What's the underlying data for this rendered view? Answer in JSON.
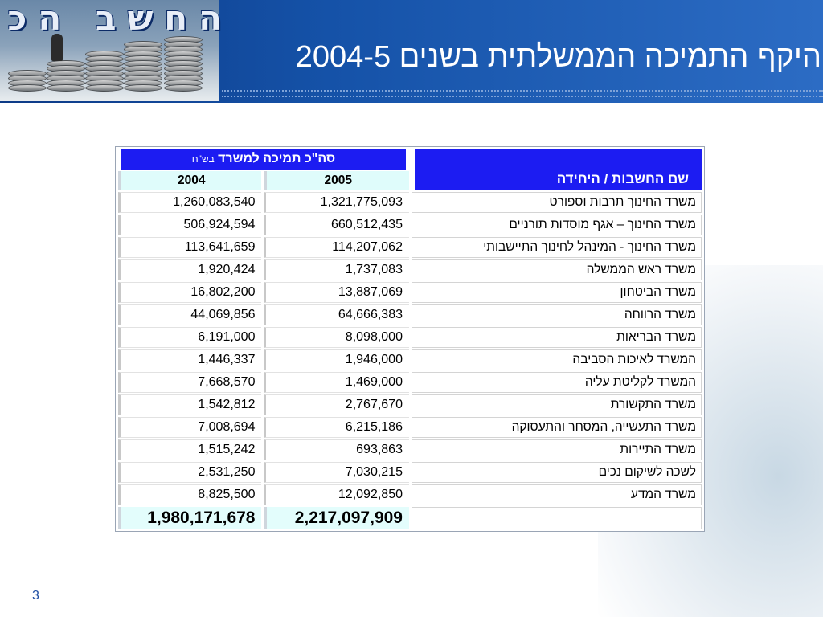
{
  "header": {
    "logo_text": "החשב הכללי",
    "title": "היקף התמיכה הממשלתית בשנים  2004-5"
  },
  "table": {
    "group_header": "סה\"כ תמיכה למשרד",
    "group_header_unit": "בש\"ח",
    "name_header": "שם החשבות / היחידה",
    "years": [
      "2004",
      "2005"
    ],
    "rows": [
      {
        "name": "משרד החינוך תרבות וספורט",
        "v2004": "1,260,083,540",
        "v2005": "1,321,775,093"
      },
      {
        "name": "משרד החינוך – אגף מוסדות תורניים",
        "v2004": "506,924,594",
        "v2005": "660,512,435"
      },
      {
        "name": "משרד החינוך -  המינהל לחינוך התיישבותי",
        "v2004": "113,641,659",
        "v2005": "114,207,062"
      },
      {
        "name": "משרד ראש הממשלה",
        "v2004": "1,920,424",
        "v2005": "1,737,083"
      },
      {
        "name": "משרד הביטחון",
        "v2004": "16,802,200",
        "v2005": "13,887,069"
      },
      {
        "name": "משרד הרווחה",
        "v2004": "44,069,856",
        "v2005": "64,666,383"
      },
      {
        "name": "משרד הבריאות",
        "v2004": "6,191,000",
        "v2005": "8,098,000"
      },
      {
        "name": "המשרד לאיכות הסביבה",
        "v2004": "1,446,337",
        "v2005": "1,946,000"
      },
      {
        "name": "המשרד לקליטת עליה",
        "v2004": "7,668,570",
        "v2005": "1,469,000"
      },
      {
        "name": "משרד התקשורת",
        "v2004": "1,542,812",
        "v2005": "2,767,670"
      },
      {
        "name": "משרד התעשייה, המסחר והתעסוקה",
        "v2004": "7,008,694",
        "v2005": "6,215,186"
      },
      {
        "name": "משרד התיירות",
        "v2004": "1,515,242",
        "v2005": "693,863"
      },
      {
        "name": "לשכה לשיקום נכים",
        "v2004": "2,531,250",
        "v2005": "7,030,215"
      },
      {
        "name": "משרד המדע",
        "v2004": "8,825,500",
        "v2005": "12,092,850"
      }
    ],
    "totals": {
      "v2004": "1,980,171,678",
      "v2005": "2,217,097,909"
    }
  },
  "footer": {
    "page_number": "3"
  }
}
